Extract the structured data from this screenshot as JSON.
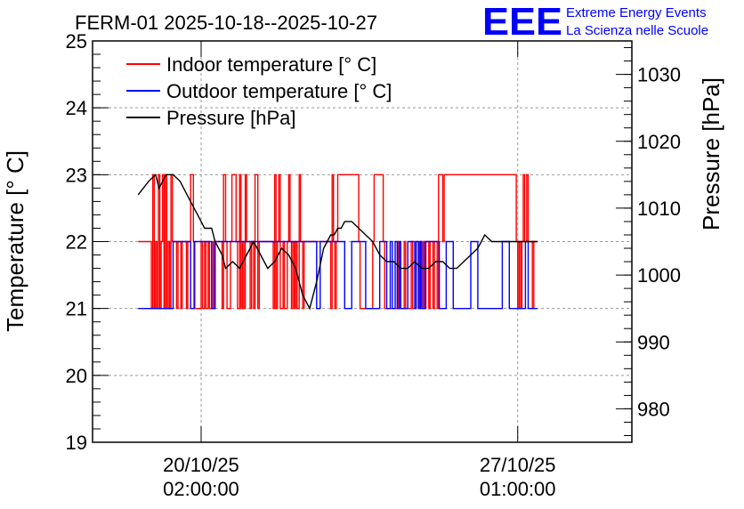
{
  "chart_data": {
    "type": "line",
    "title": "FERM-01 2025-10-18--2025-10-27",
    "ylabel": "Temperature [° C]",
    "y2label": "Pressure [hPa]",
    "ylim": [
      19,
      25
    ],
    "y2lim": [
      975,
      1035
    ],
    "xlim": [
      0,
      7.7
    ],
    "yticks": [
      "19",
      "20",
      "21",
      "22",
      "23",
      "24",
      "25"
    ],
    "y2ticks": [
      "980",
      "990",
      "1000",
      "1010",
      "1020",
      "1030"
    ],
    "xticks": [
      {
        "x": 1.55,
        "date": "20/10/25",
        "time": "02:00:00"
      },
      {
        "x": 6.07,
        "date": "27/10/25",
        "time": "01:00:00"
      }
    ],
    "grid": true,
    "legend_position": "top-left",
    "legend": [
      {
        "label": "Indoor temperature [° C]",
        "color": "#ff0000"
      },
      {
        "label": "Outdoor temperature [° C]",
        "color": "#0000ff"
      },
      {
        "label": "Pressure [hPa]",
        "color": "#000000"
      }
    ],
    "series": [
      {
        "name": "Indoor temperature [° C]",
        "axis": "left",
        "color": "#ff0000",
        "x": [
          0.65,
          0.84,
          0.84,
          0.86,
          0.86,
          0.88,
          0.88,
          0.9,
          0.9,
          0.92,
          0.92,
          0.94,
          0.94,
          0.96,
          0.96,
          0.98,
          0.98,
          1.0,
          1.0,
          1.02,
          1.02,
          1.04,
          1.04,
          1.06,
          1.06,
          1.08,
          1.08,
          1.1,
          1.1,
          1.12,
          1.12,
          1.14,
          1.14,
          1.2,
          1.2,
          1.22,
          1.22,
          1.26,
          1.26,
          1.28,
          1.28,
          1.34,
          1.34,
          1.36,
          1.36,
          1.4,
          1.4,
          1.44,
          1.44,
          1.46,
          1.46,
          1.55,
          1.55,
          1.57,
          1.57,
          1.6,
          1.6,
          1.62,
          1.62,
          1.65,
          1.65,
          1.67,
          1.67,
          1.72,
          1.72,
          1.73,
          1.73,
          1.75,
          1.75,
          1.85,
          1.85,
          1.87,
          1.87,
          1.9,
          1.9,
          1.92,
          1.92,
          1.97,
          1.97,
          1.99,
          1.99,
          2.05,
          2.05,
          2.07,
          2.07,
          2.1,
          2.1,
          2.12,
          2.12,
          2.14,
          2.14,
          2.16,
          2.16,
          2.18,
          2.18,
          2.2,
          2.2,
          2.25,
          2.25,
          2.27,
          2.27,
          2.3,
          2.3,
          2.32,
          2.32,
          2.36,
          2.36,
          2.38,
          2.38,
          2.58,
          2.58,
          2.6,
          2.6,
          2.62,
          2.62,
          2.64,
          2.64,
          2.66,
          2.66,
          2.68,
          2.68,
          2.72,
          2.72,
          2.74,
          2.74,
          2.78,
          2.78,
          2.8,
          2.8,
          2.82,
          2.82,
          2.84,
          2.84,
          2.86,
          2.86,
          2.88,
          2.88,
          2.9,
          2.9,
          2.92,
          2.92,
          2.95,
          2.95,
          2.97,
          2.97,
          3.0,
          3.0,
          3.02,
          3.02,
          3.4,
          3.4,
          3.42,
          3.42,
          3.44,
          3.44,
          3.46,
          3.46,
          3.48,
          3.48,
          3.5,
          3.5,
          3.8,
          3.8,
          3.82,
          3.82,
          4.0,
          4.0,
          4.02,
          4.02,
          4.15,
          4.15,
          4.17,
          4.17,
          4.35,
          4.35,
          4.37,
          4.37,
          4.45,
          4.45,
          4.47,
          4.47,
          4.55,
          4.55,
          4.57,
          4.57,
          4.62,
          4.62,
          4.65,
          4.65,
          4.68,
          4.68,
          4.7,
          4.7,
          4.72,
          4.72,
          4.74,
          4.74,
          4.76,
          4.76,
          4.8,
          4.8,
          4.82,
          4.82,
          4.86,
          4.86,
          4.88,
          4.88,
          4.92,
          4.92,
          4.94,
          4.94,
          5.0,
          5.0,
          5.02,
          5.02,
          6.05,
          6.05,
          6.07,
          6.07,
          6.09,
          6.09,
          6.11,
          6.11,
          6.13,
          6.13,
          6.15,
          6.15,
          6.17,
          6.17,
          6.2,
          6.2,
          6.22,
          6.22,
          6.28,
          6.28,
          6.3,
          6.3,
          6.35
        ],
        "y": [
          22,
          22,
          21,
          21,
          23,
          23,
          21,
          21,
          22,
          22,
          21,
          21,
          23,
          23,
          21,
          21,
          22,
          22,
          23,
          23,
          21,
          21,
          23,
          23,
          21,
          21,
          22,
          22,
          21,
          21,
          23,
          23,
          22,
          22,
          21,
          21,
          22,
          22,
          21,
          21,
          22,
          22,
          21,
          21,
          22,
          22,
          23,
          23,
          22,
          22,
          21,
          21,
          22,
          22,
          21,
          21,
          22,
          22,
          21,
          21,
          22,
          22,
          21,
          21,
          22,
          22,
          21,
          21,
          22,
          22,
          21,
          21,
          23,
          23,
          22,
          22,
          21,
          21,
          22,
          22,
          23,
          23,
          22,
          22,
          21,
          21,
          23,
          23,
          21,
          21,
          22,
          22,
          21,
          21,
          23,
          23,
          22,
          22,
          21,
          21,
          22,
          22,
          21,
          21,
          23,
          23,
          21,
          21,
          22,
          22,
          21,
          21,
          23,
          23,
          21,
          21,
          22,
          22,
          23,
          23,
          21,
          21,
          22,
          22,
          21,
          21,
          22,
          22,
          23,
          23,
          22,
          22,
          21,
          21,
          22,
          22,
          21,
          21,
          22,
          22,
          21,
          21,
          23,
          23,
          22,
          22,
          21,
          21,
          22,
          22,
          21,
          21,
          23,
          23,
          22,
          22,
          21,
          21,
          22,
          22,
          23,
          23,
          22,
          22,
          21,
          21,
          22,
          22,
          23,
          23,
          22,
          22,
          21,
          21,
          22,
          22,
          21,
          21,
          22,
          22,
          21,
          21,
          22,
          22,
          21,
          21,
          22,
          22,
          21,
          21,
          22,
          22,
          21,
          21,
          22,
          22,
          21,
          21,
          22,
          22,
          21,
          21,
          22,
          22,
          21,
          21,
          22,
          22,
          21,
          21,
          23,
          23,
          22,
          22,
          23,
          23,
          22,
          22,
          21,
          21,
          22,
          22,
          21,
          21,
          22,
          22,
          23,
          23,
          22,
          22,
          23,
          23,
          22,
          22,
          21,
          21,
          22,
          22
        ]
      },
      {
        "name": "Outdoor temperature [° C]",
        "axis": "left",
        "color": "#0000ff",
        "x": [
          0.65,
          1.15,
          1.15,
          1.4,
          1.4,
          1.45,
          1.45,
          1.7,
          1.7,
          1.75,
          1.75,
          3.2,
          3.2,
          3.25,
          3.25,
          3.6,
          3.6,
          3.7,
          3.7,
          3.9,
          3.9,
          4.1,
          4.1,
          4.2,
          4.2,
          4.25,
          4.25,
          4.28,
          4.28,
          4.32,
          4.32,
          4.35,
          4.35,
          4.38,
          4.38,
          4.4,
          4.4,
          4.5,
          4.5,
          4.6,
          4.6,
          4.62,
          4.62,
          4.66,
          4.66,
          4.68,
          4.68,
          4.7,
          4.7,
          4.75,
          4.75,
          4.95,
          4.95,
          5.05,
          5.05,
          5.15,
          5.15,
          5.4,
          5.4,
          5.5,
          5.5,
          5.85,
          5.85,
          5.95,
          5.95,
          6.18,
          6.18,
          6.22,
          6.22,
          6.35
        ],
        "y": [
          21,
          21,
          22,
          22,
          21,
          21,
          22,
          22,
          21,
          21,
          22,
          22,
          21,
          21,
          22,
          22,
          21,
          21,
          22,
          22,
          21,
          21,
          22,
          22,
          21,
          21,
          22,
          22,
          21,
          21,
          22,
          22,
          21,
          21,
          22,
          22,
          21,
          21,
          22,
          22,
          21,
          21,
          22,
          22,
          21,
          21,
          22,
          22,
          21,
          21,
          22,
          22,
          21,
          21,
          22,
          22,
          21,
          21,
          22,
          22,
          21,
          21,
          22,
          22,
          21,
          21,
          22,
          22,
          21,
          21
        ]
      },
      {
        "name": "Pressure [hPa]",
        "axis": "right",
        "color": "#000000",
        "x": [
          0.65,
          0.8,
          0.9,
          0.95,
          1.0,
          1.05,
          1.15,
          1.25,
          1.35,
          1.45,
          1.5,
          1.6,
          1.7,
          1.75,
          1.85,
          1.9,
          2.0,
          2.1,
          2.2,
          2.3,
          2.4,
          2.5,
          2.6,
          2.7,
          2.8,
          2.9,
          3.0,
          3.1,
          3.2,
          3.3,
          3.4,
          3.45,
          3.5,
          3.55,
          3.6,
          3.7,
          3.8,
          3.9,
          4.0,
          4.1,
          4.2,
          4.3,
          4.4,
          4.5,
          4.6,
          4.7,
          4.8,
          4.9,
          5.0,
          5.1,
          5.2,
          5.3,
          5.4,
          5.5,
          5.6,
          5.7,
          5.8,
          5.9,
          6.0,
          6.1,
          6.2,
          6.3,
          6.35
        ],
        "y": [
          1012,
          1014,
          1015,
          1013,
          1014,
          1015,
          1015,
          1014,
          1012,
          1010,
          1009,
          1007,
          1007,
          1005,
          1003,
          1001,
          1002,
          1001,
          1003,
          1005,
          1003,
          1001,
          1002,
          1004,
          1003,
          1001,
          997,
          995,
          999,
          1004,
          1006,
          1006,
          1007,
          1007,
          1008,
          1008,
          1007,
          1006,
          1005,
          1003,
          1002,
          1002,
          1001,
          1001,
          1002,
          1001,
          1001,
          1002,
          1002,
          1001,
          1001,
          1002,
          1003,
          1004,
          1006,
          1005,
          1005,
          1005,
          1005,
          1005,
          1005,
          1005,
          1005
        ]
      }
    ]
  },
  "logo": {
    "text": "EEE",
    "line1": "Extreme Energy Events",
    "line2": "La Scienza nelle Scuole",
    "color": "#0000ff"
  }
}
